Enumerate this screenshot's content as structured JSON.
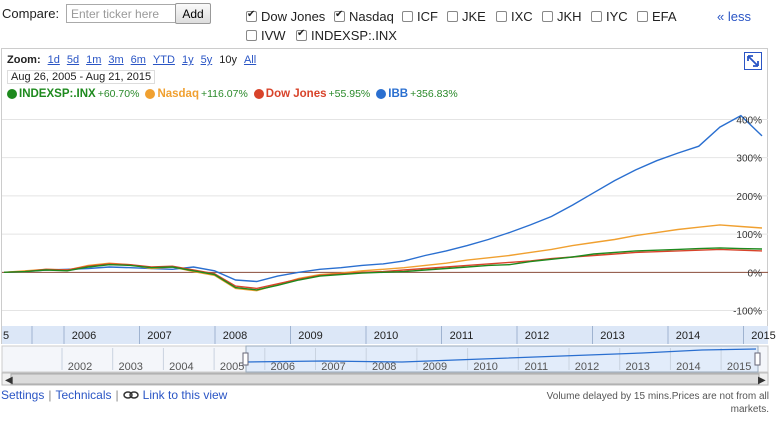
{
  "toolbar": {
    "compare_label": "Compare:",
    "ticker_placeholder": "Enter ticker here",
    "add_label": "Add",
    "less_label": "« less",
    "compare_items": [
      {
        "label": "Dow Jones",
        "checked": true
      },
      {
        "label": "Nasdaq",
        "checked": true
      },
      {
        "label": "ICF",
        "checked": false
      },
      {
        "label": "JKE",
        "checked": false
      },
      {
        "label": "IXC",
        "checked": false
      },
      {
        "label": "JKH",
        "checked": false
      },
      {
        "label": "IYC",
        "checked": false
      },
      {
        "label": "EFA",
        "checked": false
      },
      {
        "label": "IVW",
        "checked": false
      },
      {
        "label": "INDEXSP:.INX",
        "checked": true
      }
    ]
  },
  "zoom": {
    "label": "Zoom:",
    "options": [
      "1d",
      "5d",
      "1m",
      "3m",
      "6m",
      "YTD",
      "1y",
      "5y",
      "10y",
      "All"
    ],
    "selected": "10y"
  },
  "date_range": "Aug 26, 2005  -  Aug 21, 2015",
  "chart_data": {
    "type": "line",
    "x_labels": [
      "5",
      "2006",
      "2007",
      "2008",
      "2009",
      "2010",
      "2011",
      "2012",
      "2013",
      "2014",
      "2015"
    ],
    "y_ticks": [
      "400%",
      "300%",
      "200%",
      "100%",
      "0%",
      "-100%"
    ],
    "ylim": [
      -130,
      430
    ],
    "grid": true,
    "legend_position": "top-left",
    "series": [
      {
        "name": "INDEXSP:.INX",
        "change": "+60.70%",
        "color": "#1e8a1e",
        "values": [
          0,
          2,
          6,
          4,
          14,
          20,
          18,
          12,
          14,
          4,
          -6,
          -40,
          -46,
          -34,
          -20,
          -10,
          -6,
          -2,
          0,
          2,
          6,
          10,
          14,
          18,
          20,
          28,
          34,
          40,
          48,
          52,
          56,
          58,
          60,
          62,
          64,
          62,
          61
        ]
      },
      {
        "name": "Nasdaq",
        "change": "+116.07%",
        "color": "#f0a030",
        "values": [
          0,
          4,
          8,
          6,
          18,
          24,
          20,
          10,
          14,
          2,
          -8,
          -42,
          -48,
          -32,
          -16,
          -6,
          -2,
          4,
          8,
          12,
          18,
          24,
          32,
          38,
          44,
          52,
          60,
          70,
          78,
          86,
          96,
          104,
          112,
          118,
          124,
          120,
          116
        ]
      },
      {
        "name": "Dow Jones",
        "change": "+55.95%",
        "color": "#d8432a",
        "values": [
          0,
          2,
          8,
          6,
          16,
          22,
          20,
          14,
          16,
          6,
          -4,
          -36,
          -42,
          -30,
          -18,
          -8,
          -4,
          0,
          2,
          6,
          10,
          14,
          18,
          22,
          26,
          30,
          36,
          40,
          44,
          48,
          52,
          54,
          56,
          58,
          60,
          58,
          56
        ]
      },
      {
        "name": "IBB",
        "change": "+356.83%",
        "color": "#2a6fd0",
        "values": [
          0,
          2,
          6,
          8,
          10,
          14,
          12,
          10,
          8,
          14,
          4,
          -20,
          -24,
          -10,
          0,
          8,
          12,
          18,
          22,
          30,
          44,
          56,
          70,
          86,
          104,
          124,
          146,
          176,
          208,
          240,
          268,
          292,
          312,
          330,
          380,
          410,
          357
        ]
      }
    ]
  },
  "navigator": {
    "years": [
      "2002",
      "2003",
      "2004",
      "2005",
      "2006",
      "2007",
      "2008",
      "2009",
      "2010",
      "2011",
      "2012",
      "2013",
      "2014",
      "2015"
    ]
  },
  "footer": {
    "settings": "Settings",
    "technicals": "Technicals",
    "link_view": "Link to this view",
    "disclaimer": "Volume delayed by 15 mins.Prices are not from all markets."
  }
}
